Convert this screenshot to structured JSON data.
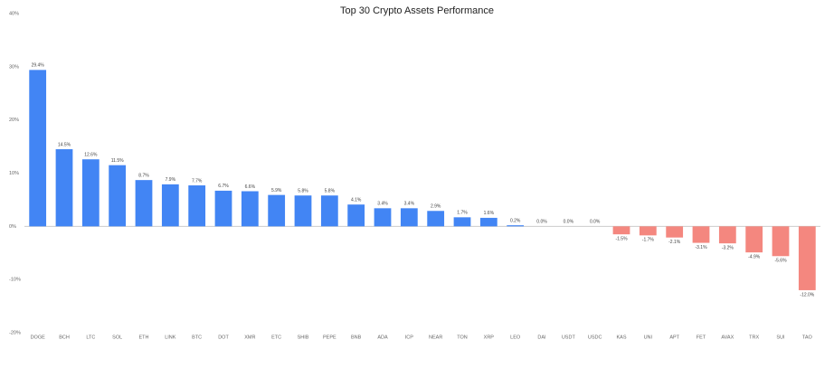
{
  "chart_data": {
    "type": "bar",
    "title": "Top 30 Crypto Assets Performance",
    "categories": [
      "DOGE",
      "BCH",
      "LTC",
      "SOL",
      "ETH",
      "LINK",
      "BTC",
      "DOT",
      "XMR",
      "ETC",
      "SHIB",
      "PEPE",
      "BNB",
      "ADA",
      "ICP",
      "NEAR",
      "TON",
      "XRP",
      "LEO",
      "DAI",
      "USDT",
      "USDC",
      "KAS",
      "UNI",
      "APT",
      "FET",
      "AVAX",
      "TRX",
      "SUI",
      "TAO"
    ],
    "values": [
      29.4,
      14.5,
      12.6,
      11.5,
      8.7,
      7.9,
      7.7,
      6.7,
      6.6,
      5.9,
      5.8,
      5.8,
      4.1,
      3.4,
      3.4,
      2.9,
      1.7,
      1.6,
      0.2,
      0.0,
      0.0,
      0.0,
      -1.5,
      -1.7,
      -2.1,
      -3.1,
      -3.2,
      -4.9,
      -5.6,
      -12.0
    ],
    "value_labels": [
      "29.4%",
      "14.5%",
      "12.6%",
      "11.5%",
      "8.7%",
      "7.9%",
      "7.7%",
      "6.7%",
      "6.6%",
      "5.9%",
      "5.8%",
      "5.8%",
      "4.1%",
      "3.4%",
      "3.4%",
      "2.9%",
      "1.7%",
      "1.6%",
      "0.2%",
      "0.0%",
      "0.0%",
      "0.0%",
      "-1.5%",
      "-1.7%",
      "-2.1%",
      "-3.1%",
      "-3.2%",
      "-4.9%",
      "-5.6%",
      "-12.0%"
    ],
    "color": "#4285f4",
    "negative_color": "#f4877f",
    "ylim": [
      -20,
      40
    ],
    "yticks": [
      {
        "value": -20,
        "label": "-20%"
      },
      {
        "value": -10,
        "label": "-10%"
      },
      {
        "value": 0,
        "label": "0%"
      },
      {
        "value": 10,
        "label": "10%"
      },
      {
        "value": 20,
        "label": "20%"
      },
      {
        "value": 30,
        "label": "30%"
      },
      {
        "value": 40,
        "label": "40%"
      }
    ],
    "grid": false
  }
}
